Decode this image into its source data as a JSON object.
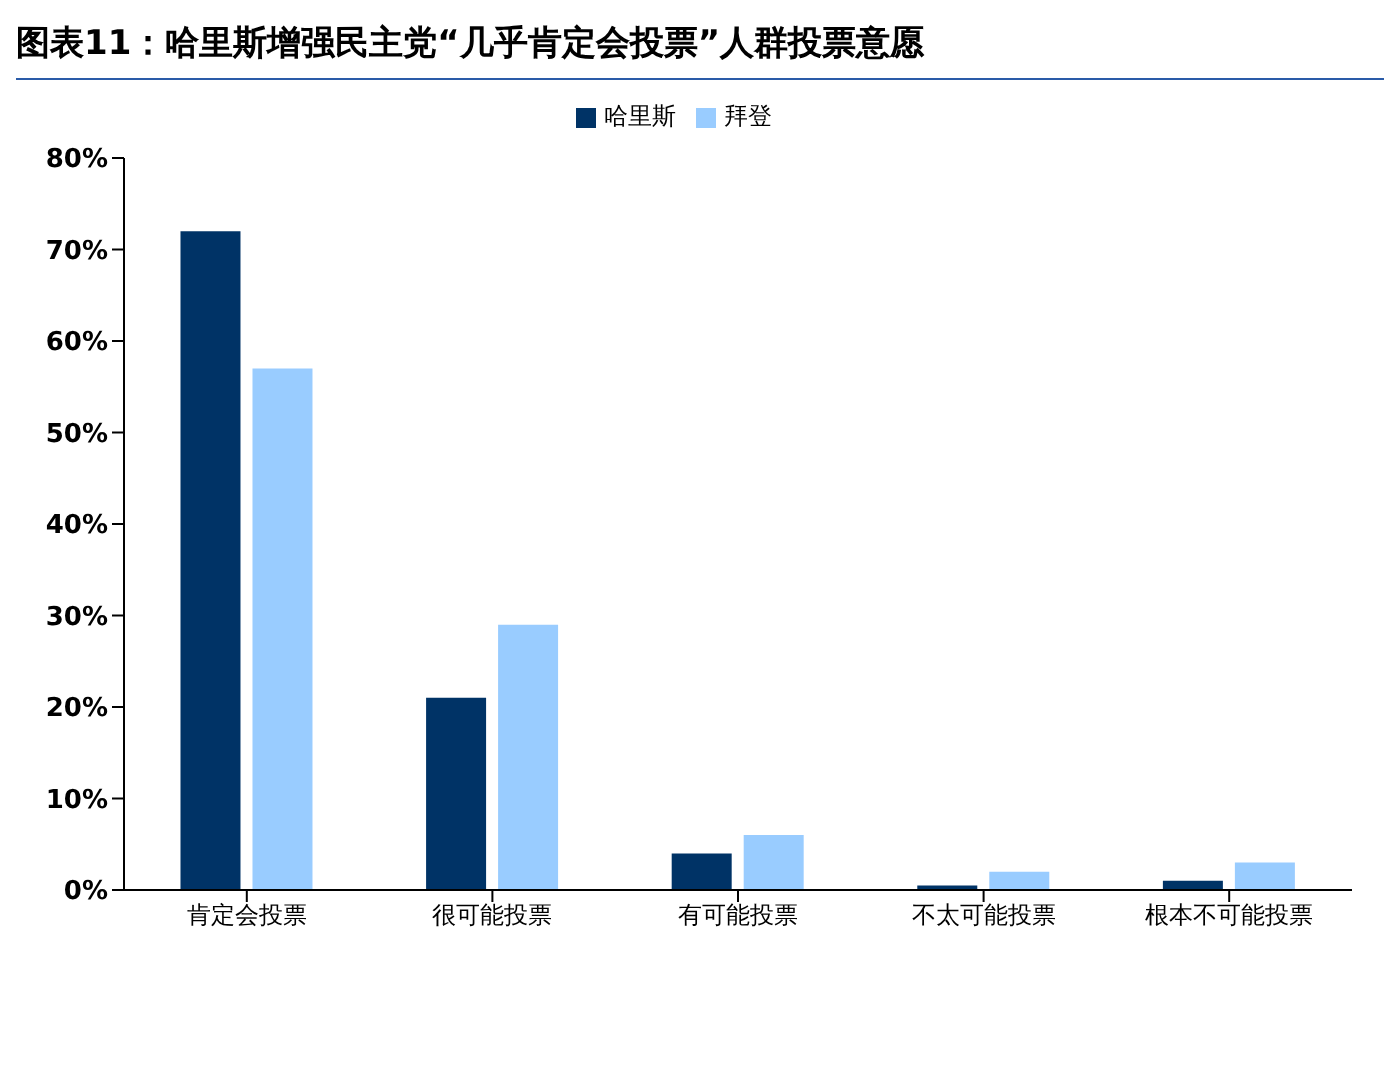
{
  "chart_data": {
    "type": "bar",
    "title": "图表11：哈里斯增强民主党“几乎肯定会投票”人群投票意愿",
    "categories": [
      "肯定会投票",
      "很可能投票",
      "有可能投票",
      "不太可能投票",
      "根本不可能投票"
    ],
    "series": [
      {
        "name": "哈里斯",
        "color": "#003366",
        "values": [
          72,
          21,
          4,
          0.5,
          1
        ]
      },
      {
        "name": "拜登",
        "color": "#99ccff",
        "values": [
          57,
          29,
          6,
          2,
          3
        ]
      }
    ],
    "ylim": [
      0,
      80
    ],
    "yticks": [
      {
        "value": 0,
        "label": "0%"
      },
      {
        "value": 10,
        "label": "10%"
      },
      {
        "value": 20,
        "label": "20%"
      },
      {
        "value": 30,
        "label": "30%"
      },
      {
        "value": 40,
        "label": "40%"
      },
      {
        "value": 50,
        "label": "50%"
      },
      {
        "value": 60,
        "label": "60%"
      },
      {
        "value": 70,
        "label": "70%"
      },
      {
        "value": 80,
        "label": "80%"
      }
    ],
    "grid": false,
    "legend": "top"
  }
}
